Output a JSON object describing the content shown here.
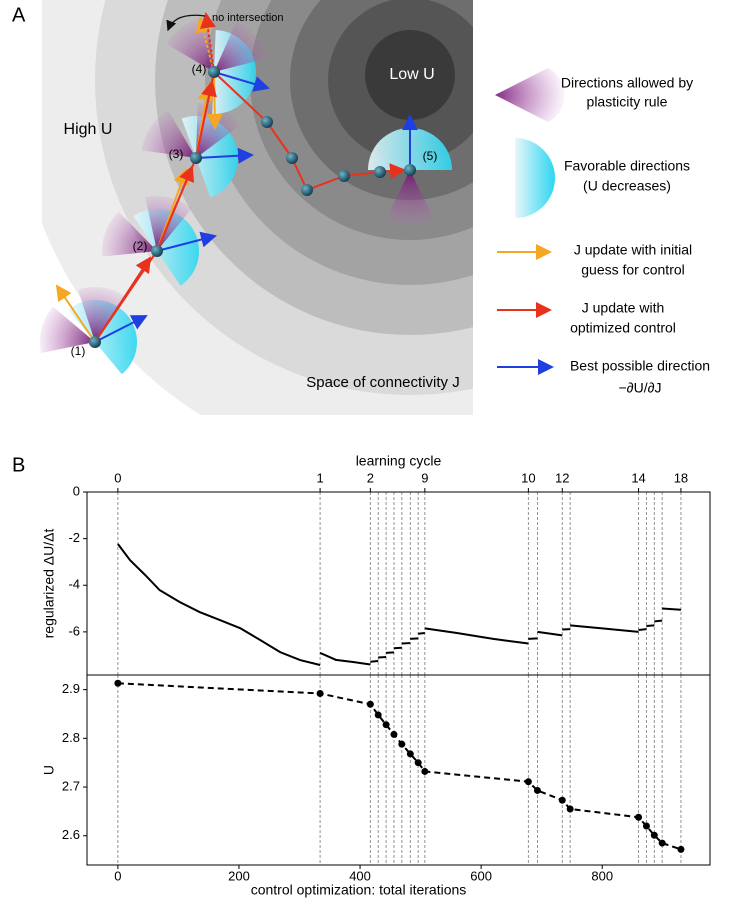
{
  "diagram": {
    "panel_labels": [
      "A",
      "B"
    ],
    "low_u": "Low U",
    "high_u": "High U",
    "space_label": "Space of connectivity J",
    "annotation": "no intersection",
    "points": [
      "(1)",
      "(2)",
      "(3)",
      "(4)",
      "(5)"
    ],
    "legend": [
      {
        "lines": [
          "Directions allowed by",
          "plasticity rule"
        ]
      },
      {
        "lines": [
          "Favorable directions",
          "(U decreases)"
        ]
      },
      {
        "lines": [
          "J update with initial",
          "guess for control"
        ]
      },
      {
        "lines": [
          "J update with",
          "optimized control"
        ]
      },
      {
        "lines": [
          "Best possible direction",
          "−∂U/∂J"
        ]
      }
    ]
  },
  "chart_data": [
    {
      "type": "line",
      "y_label": "regularized ΔU/Δt",
      "x2_label": "learning cycle",
      "xlim": [
        -51,
        978
      ],
      "ylim": [
        -7.85,
        0
      ],
      "yticks": [
        0,
        -2,
        -4,
        -6
      ],
      "x2ticks": [
        0,
        {
          "value": 334,
          "label": "1"
        },
        {
          "value": 417,
          "label": "2"
        },
        {
          "value": 507,
          "label": "9"
        },
        {
          "value": 678,
          "label": "10"
        },
        {
          "value": 734,
          "label": "12"
        },
        {
          "value": 860,
          "label": "14"
        },
        {
          "value": 930,
          "label": "18"
        }
      ],
      "vlines": [
        0,
        334,
        417,
        430,
        443,
        456,
        469,
        483,
        496,
        507,
        678,
        693,
        734,
        747,
        860,
        873,
        886,
        899,
        930
      ],
      "series": [
        {
          "color": "#000000",
          "x": [
            0,
            20,
            45,
            69,
            102,
            135,
            168,
            202,
            235,
            268,
            301,
            334,
            null,
            334,
            360,
            390,
            417,
            null,
            417,
            430,
            null,
            430,
            443,
            null,
            443,
            456,
            null,
            456,
            469,
            null,
            469,
            483,
            null,
            483,
            496,
            null,
            496,
            507,
            null,
            507,
            560,
            620,
            678,
            null,
            678,
            693,
            null,
            693,
            734,
            null,
            734,
            747,
            null,
            747,
            800,
            860,
            null,
            860,
            873,
            null,
            873,
            886,
            null,
            886,
            899,
            null,
            899,
            930
          ],
          "values": [
            -2.23,
            -2.92,
            -3.56,
            -4.21,
            -4.72,
            -5.15,
            -5.49,
            -5.84,
            -6.35,
            -6.87,
            -7.21,
            -7.42,
            null,
            -6.9,
            -7.2,
            -7.3,
            -7.4,
            null,
            -7.28,
            -7.25,
            null,
            -7.1,
            -7.08,
            null,
            -6.9,
            -6.88,
            null,
            -6.7,
            -6.68,
            null,
            -6.5,
            -6.48,
            null,
            -6.3,
            -6.28,
            null,
            -6.08,
            -6.05,
            null,
            -5.85,
            -6.05,
            -6.3,
            -6.5,
            null,
            -6.3,
            -6.28,
            null,
            -6.0,
            -6.15,
            null,
            -5.9,
            -5.88,
            null,
            -5.72,
            -5.85,
            -6.0,
            null,
            -5.92,
            -5.88,
            null,
            -5.75,
            -5.72,
            null,
            -5.55,
            -5.52,
            null,
            -5.0,
            -5.05
          ]
        }
      ]
    },
    {
      "type": "line",
      "y_label": "U",
      "x_label": "control optimization: total iterations",
      "xlim": [
        -51,
        978
      ],
      "ylim": [
        2.54,
        2.93
      ],
      "yticks": [
        2.6,
        2.7,
        2.8,
        2.9
      ],
      "xticks": [
        0,
        200,
        400,
        600,
        800
      ],
      "dashed": true,
      "markers": true,
      "series": [
        {
          "color": "#000000",
          "x": [
            0,
            334,
            417,
            430,
            443,
            456,
            469,
            483,
            496,
            507,
            678,
            693,
            734,
            747,
            860,
            873,
            886,
            899,
            930
          ],
          "values": [
            2.913,
            2.892,
            2.87,
            2.848,
            2.828,
            2.808,
            2.788,
            2.768,
            2.75,
            2.732,
            2.711,
            2.693,
            2.673,
            2.655,
            2.638,
            2.62,
            2.601,
            2.585,
            2.572
          ]
        }
      ]
    }
  ]
}
